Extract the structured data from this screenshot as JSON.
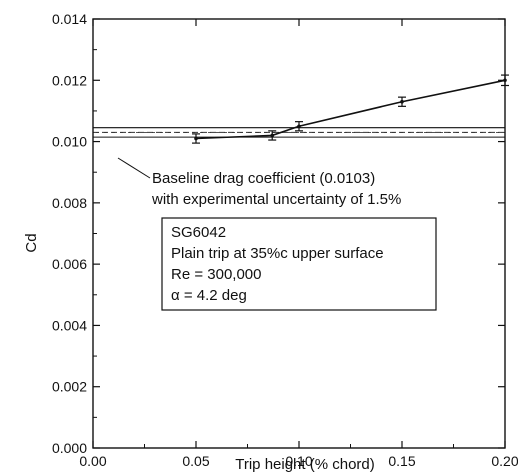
{
  "chart_data": {
    "type": "line",
    "title": "",
    "xlabel": "Trip height (% chord)",
    "ylabel": "Cd",
    "xlim": [
      0.0,
      0.2
    ],
    "ylim": [
      0.0,
      0.014
    ],
    "x_ticks": [
      "0.00",
      "0.05",
      "0.10",
      "0.15",
      "0.20"
    ],
    "y_ticks": [
      "0.000",
      "0.002",
      "0.004",
      "0.006",
      "0.008",
      "0.010",
      "0.012",
      "0.014"
    ],
    "grid": false,
    "series": [
      {
        "x": [
          0.05,
          0.087,
          0.1,
          0.15,
          0.2
        ],
        "y": [
          0.0101,
          0.0102,
          0.0105,
          0.0113,
          0.012
        ],
        "y_error": [
          0.00015,
          0.00015,
          0.00015,
          0.00015,
          0.00017
        ]
      }
    ],
    "baseline": {
      "value": 0.0103,
      "uncertainty_fraction": 0.015
    },
    "annotations": {
      "baseline_line1": "Baseline drag coefficient (0.0103)",
      "baseline_line2": "with experimental uncertainty of 1.5%",
      "box_lines": [
        "SG6042",
        "Plain trip at 35%c upper surface",
        "Re = 300,000",
        "α  = 4.2 deg"
      ]
    }
  }
}
